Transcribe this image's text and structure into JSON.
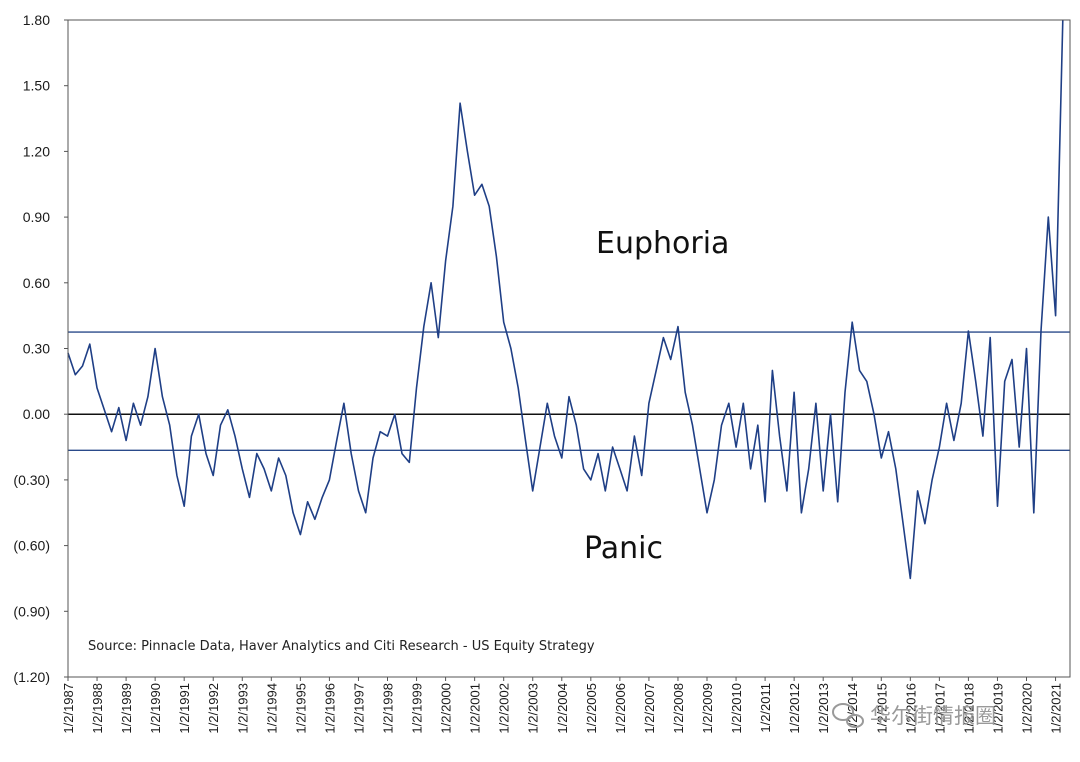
{
  "chart_data": {
    "type": "line",
    "title": "",
    "xlabel": "",
    "ylabel": "",
    "ylim": [
      -1.2,
      1.8
    ],
    "y_ticks": [
      "1.80",
      "1.50",
      "1.20",
      "0.90",
      "0.60",
      "0.30",
      "0.00",
      "(0.30)",
      "(0.60)",
      "(0.90)",
      "(1.20)"
    ],
    "x_ticks": [
      "1/2/1987",
      "1/2/1988",
      "1/2/1989",
      "1/2/1990",
      "1/2/1991",
      "1/2/1992",
      "1/2/1993",
      "1/2/1994",
      "1/2/1995",
      "1/2/1996",
      "1/2/1997",
      "1/2/1998",
      "1/2/1999",
      "1/2/2000",
      "1/2/2001",
      "1/2/2002",
      "1/2/2003",
      "1/2/2004",
      "1/2/2005",
      "1/2/2006",
      "1/2/2007",
      "1/2/2008",
      "1/2/2009",
      "1/2/2010",
      "1/2/2011",
      "1/2/2012",
      "1/2/2013",
      "1/2/2014",
      "1/2/2015",
      "1/2/2016",
      "1/2/2017",
      "1/2/2018",
      "1/2/2019",
      "1/2/2020",
      "1/2/2021"
    ],
    "grid": false,
    "series": [
      {
        "color": "#1f3f86",
        "x": [
          "1987-01",
          "1987-04",
          "1987-07",
          "1987-10",
          "1988-01",
          "1988-04",
          "1988-07",
          "1988-10",
          "1989-01",
          "1989-04",
          "1989-07",
          "1989-10",
          "1990-01",
          "1990-04",
          "1990-07",
          "1990-10",
          "1991-01",
          "1991-04",
          "1991-07",
          "1991-10",
          "1992-01",
          "1992-04",
          "1992-07",
          "1992-10",
          "1993-01",
          "1993-04",
          "1993-07",
          "1993-10",
          "1994-01",
          "1994-04",
          "1994-07",
          "1994-10",
          "1995-01",
          "1995-04",
          "1995-07",
          "1995-10",
          "1996-01",
          "1996-04",
          "1996-07",
          "1996-10",
          "1997-01",
          "1997-04",
          "1997-07",
          "1997-10",
          "1998-01",
          "1998-04",
          "1998-07",
          "1998-10",
          "1999-01",
          "1999-04",
          "1999-07",
          "1999-10",
          "2000-01",
          "2000-04",
          "2000-07",
          "2000-10",
          "2001-01",
          "2001-04",
          "2001-07",
          "2001-10",
          "2002-01",
          "2002-04",
          "2002-07",
          "2002-10",
          "2003-01",
          "2003-04",
          "2003-07",
          "2003-10",
          "2004-01",
          "2004-04",
          "2004-07",
          "2004-10",
          "2005-01",
          "2005-04",
          "2005-07",
          "2005-10",
          "2006-01",
          "2006-04",
          "2006-07",
          "2006-10",
          "2007-01",
          "2007-04",
          "2007-07",
          "2007-10",
          "2008-01",
          "2008-04",
          "2008-07",
          "2008-10",
          "2009-01",
          "2009-04",
          "2009-07",
          "2009-10",
          "2010-01",
          "2010-04",
          "2010-07",
          "2010-10",
          "2011-01",
          "2011-04",
          "2011-07",
          "2011-10",
          "2012-01",
          "2012-04",
          "2012-07",
          "2012-10",
          "2013-01",
          "2013-04",
          "2013-07",
          "2013-10",
          "2014-01",
          "2014-04",
          "2014-07",
          "2014-10",
          "2015-01",
          "2015-04",
          "2015-07",
          "2015-10",
          "2016-01",
          "2016-04",
          "2016-07",
          "2016-10",
          "2017-01",
          "2017-04",
          "2017-07",
          "2017-10",
          "2018-01",
          "2018-04",
          "2018-07",
          "2018-10",
          "2019-01",
          "2019-04",
          "2019-07",
          "2019-10",
          "2020-01",
          "2020-04",
          "2020-07",
          "2020-10",
          "2021-01",
          "2021-04"
        ],
        "y": [
          0.28,
          0.18,
          0.22,
          0.32,
          0.12,
          0.02,
          -0.08,
          0.03,
          -0.12,
          0.05,
          -0.05,
          0.08,
          0.3,
          0.08,
          -0.05,
          -0.28,
          -0.42,
          -0.1,
          0.0,
          -0.18,
          -0.28,
          -0.05,
          0.02,
          -0.1,
          -0.25,
          -0.38,
          -0.18,
          -0.25,
          -0.35,
          -0.2,
          -0.28,
          -0.45,
          -0.55,
          -0.4,
          -0.48,
          -0.38,
          -0.3,
          -0.12,
          0.05,
          -0.18,
          -0.35,
          -0.45,
          -0.2,
          -0.08,
          -0.1,
          0.0,
          -0.18,
          -0.22,
          0.12,
          0.4,
          0.6,
          0.35,
          0.7,
          0.95,
          1.42,
          1.2,
          1.0,
          1.05,
          0.95,
          0.72,
          0.42,
          0.3,
          0.12,
          -0.12,
          -0.35,
          -0.15,
          0.05,
          -0.1,
          -0.2,
          0.08,
          -0.05,
          -0.25,
          -0.3,
          -0.18,
          -0.35,
          -0.15,
          -0.25,
          -0.35,
          -0.1,
          -0.28,
          0.05,
          0.2,
          0.35,
          0.25,
          0.4,
          0.1,
          -0.05,
          -0.25,
          -0.45,
          -0.3,
          -0.05,
          0.05,
          -0.15,
          0.05,
          -0.25,
          -0.05,
          -0.4,
          0.2,
          -0.1,
          -0.35,
          0.1,
          -0.45,
          -0.25,
          0.05,
          -0.35,
          0.0,
          -0.4,
          0.1,
          0.42,
          0.2,
          0.15,
          0.0,
          -0.2,
          -0.08,
          -0.25,
          -0.5,
          -0.75,
          -0.35,
          -0.5,
          -0.3,
          -0.15,
          0.05,
          -0.12,
          0.05,
          0.38,
          0.15,
          -0.1,
          0.35,
          -0.42,
          0.15,
          0.25,
          -0.15,
          0.3,
          -0.45,
          0.38,
          0.9,
          0.45,
          1.8
        ]
      }
    ],
    "reference_lines": [
      0.375,
      0.0,
      -0.165
    ],
    "annotations": [
      "Euphoria",
      "Panic"
    ]
  },
  "annotations": {
    "euphoria": "Euphoria",
    "panic": "Panic",
    "source": "Source:  Pinnacle Data, Haver Analytics and Citi Research - US Equity Strategy"
  },
  "watermark": "华尔街情报圈"
}
